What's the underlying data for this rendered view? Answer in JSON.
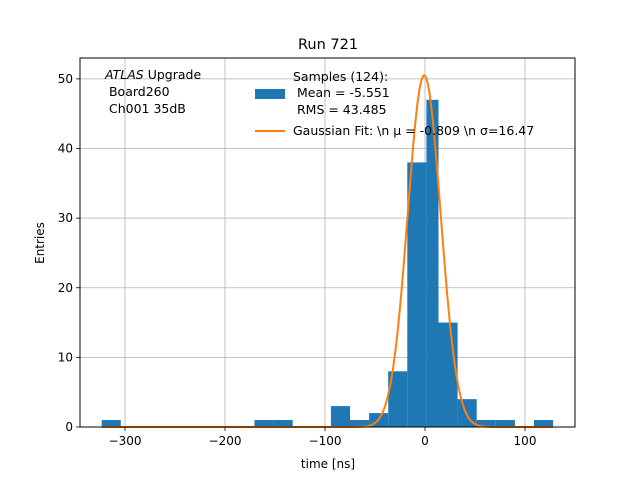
{
  "chart_data": {
    "type": "bar",
    "title": "Run 721",
    "xlabel": "time [ns]",
    "ylabel": "Entries",
    "xlim": [
      -345,
      150
    ],
    "ylim": [
      0,
      53
    ],
    "grid": true,
    "x_ticks": [
      -300,
      -200,
      -100,
      0,
      100
    ],
    "y_ticks": [
      0,
      10,
      20,
      30,
      40,
      50
    ],
    "x_tick_labels": [
      "−300",
      "−200",
      "−100",
      "0",
      "100"
    ],
    "y_tick_labels": [
      "0",
      "10",
      "20",
      "30",
      "40",
      "50"
    ],
    "bar_color": "#1f77b4",
    "fit_color": "#ff7f0e",
    "histogram": {
      "name_lines": [
        "Samples (124):",
        " Mean = -5.551",
        " RMS = 43.485"
      ],
      "bins": [
        {
          "x0": -323.3,
          "x1": -304.2,
          "count": 1
        },
        {
          "x0": -304.2,
          "x1": -285.1,
          "count": 0
        },
        {
          "x0": -285.1,
          "x1": -266.0,
          "count": 0
        },
        {
          "x0": -266.0,
          "x1": -246.9,
          "count": 0
        },
        {
          "x0": -246.9,
          "x1": -227.8,
          "count": 0
        },
        {
          "x0": -227.8,
          "x1": -208.7,
          "count": 0
        },
        {
          "x0": -208.7,
          "x1": -189.6,
          "count": 0
        },
        {
          "x0": -189.6,
          "x1": -170.5,
          "count": 0
        },
        {
          "x0": -170.5,
          "x1": -151.4,
          "count": 1
        },
        {
          "x0": -151.4,
          "x1": -132.3,
          "count": 1
        },
        {
          "x0": -132.3,
          "x1": -113.2,
          "count": 0
        },
        {
          "x0": -113.2,
          "x1": -94.1,
          "count": 0
        },
        {
          "x0": -94.1,
          "x1": -75.0,
          "count": 3
        },
        {
          "x0": -75.0,
          "x1": -55.9,
          "count": 1
        },
        {
          "x0": -55.9,
          "x1": -36.8,
          "count": 2
        },
        {
          "x0": -36.8,
          "x1": -17.7,
          "count": 8
        },
        {
          "x0": -17.7,
          "x1": 1.4,
          "count": 38
        },
        {
          "x0": 1.4,
          "x1": 13.5,
          "count": 47
        },
        {
          "x0": 13.5,
          "x1": 32.6,
          "count": 15
        },
        {
          "x0": 32.6,
          "x1": 51.7,
          "count": 4
        },
        {
          "x0": 51.7,
          "x1": 70.8,
          "count": 1
        },
        {
          "x0": 70.8,
          "x1": 89.9,
          "count": 1
        },
        {
          "x0": 89.9,
          "x1": 109.0,
          "count": 0
        },
        {
          "x0": 109.0,
          "x1": 128.1,
          "count": 1
        }
      ]
    },
    "fit": {
      "name": "Gaussian Fit: \\n μ = -0.809 \\n σ=16.47",
      "amplitude": 50.5,
      "mu": -0.809,
      "sigma": 16.47,
      "x_range": [
        -323,
        128
      ]
    },
    "legend_position": "top-center",
    "annotation": {
      "italic": "ATLAS",
      "rest": " Upgrade",
      "line2": " Board260",
      "line3": " Ch001 35dB"
    }
  }
}
